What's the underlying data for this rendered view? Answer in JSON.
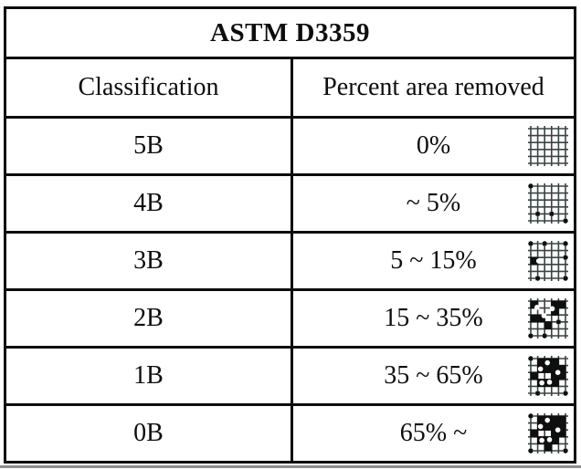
{
  "title": "ASTM D3359",
  "columns": {
    "classification": "Classification",
    "percent": "Percent area removed"
  },
  "colors": {
    "table_border": "#0d0d0d",
    "icon_grid_line": "#3a4443",
    "icon_fill": "#0f0f0f",
    "background": "#ffffff"
  },
  "rows": [
    {
      "classification": "5B",
      "percent": "0%",
      "icon": {
        "name": "crosshatch-grid-0-percent",
        "cells": [],
        "specks": [],
        "holes": []
      }
    },
    {
      "classification": "4B",
      "percent": "~ 5%",
      "icon": {
        "name": "crosshatch-grid-5-percent",
        "cells": [],
        "specks": [
          [
            0,
            0
          ],
          [
            4,
            1
          ],
          [
            4,
            3
          ],
          [
            5,
            5
          ]
        ],
        "holes": []
      }
    },
    {
      "classification": "3B",
      "percent": "5 ~ 15%",
      "icon": {
        "name": "crosshatch-grid-15-percent",
        "cells": [
          [
            2,
            0
          ]
        ],
        "specks": [
          [
            0,
            0
          ],
          [
            0,
            2
          ],
          [
            0,
            5
          ],
          [
            2,
            5
          ],
          [
            5,
            1
          ],
          [
            5,
            5
          ]
        ],
        "holes": [
          [
            2.5,
            1.15
          ]
        ]
      }
    },
    {
      "classification": "2B",
      "percent": "15 ~ 35%",
      "icon": {
        "name": "crosshatch-grid-35-percent",
        "cells": [
          [
            0,
            0
          ],
          [
            0,
            3
          ],
          [
            0,
            4
          ],
          [
            1,
            3
          ],
          [
            2,
            0
          ],
          [
            2,
            1
          ],
          [
            3,
            2
          ]
        ],
        "specks": [
          [
            5,
            0
          ],
          [
            5,
            2
          ],
          [
            3,
            4
          ]
        ],
        "holes": [
          [
            0.9,
            0.9
          ],
          [
            1.1,
            3.1
          ],
          [
            2.1,
            1.9
          ]
        ]
      }
    },
    {
      "classification": "1B",
      "percent": "35 ~ 65%",
      "icon": {
        "name": "crosshatch-grid-65-percent",
        "cells": [
          [
            0,
            1
          ],
          [
            0,
            2
          ],
          [
            0,
            3
          ],
          [
            1,
            1
          ],
          [
            1,
            2
          ],
          [
            1,
            3
          ],
          [
            1,
            4
          ],
          [
            2,
            0
          ],
          [
            2,
            3
          ],
          [
            2,
            4
          ],
          [
            3,
            1
          ],
          [
            3,
            2
          ],
          [
            3,
            3
          ]
        ],
        "specks": [
          [
            0,
            0
          ],
          [
            5,
            1
          ],
          [
            5,
            5
          ]
        ],
        "holes": [
          [
            0.6,
            2.4
          ],
          [
            1.5,
            1.4
          ],
          [
            3.5,
            1.6
          ],
          [
            3.4,
            2.7
          ],
          [
            2.0,
            3.9
          ]
        ]
      }
    },
    {
      "classification": "0B",
      "percent": "65% ~",
      "icon": {
        "name": "crosshatch-grid-over-65-percent",
        "cells": [
          [
            0,
            1
          ],
          [
            0,
            2
          ],
          [
            0,
            3
          ],
          [
            0,
            4
          ],
          [
            1,
            1
          ],
          [
            1,
            2
          ],
          [
            1,
            3
          ],
          [
            1,
            4
          ],
          [
            2,
            0
          ],
          [
            2,
            3
          ],
          [
            2,
            4
          ],
          [
            3,
            1
          ],
          [
            3,
            2
          ],
          [
            3,
            3
          ],
          [
            4,
            2
          ]
        ],
        "specks": [
          [
            0,
            0
          ],
          [
            5,
            0
          ],
          [
            5,
            5
          ]
        ],
        "holes": [
          [
            0.6,
            2.4
          ],
          [
            1.5,
            1.4
          ],
          [
            3.5,
            1.6
          ],
          [
            3.4,
            2.7
          ],
          [
            2.0,
            3.9
          ]
        ]
      }
    }
  ]
}
